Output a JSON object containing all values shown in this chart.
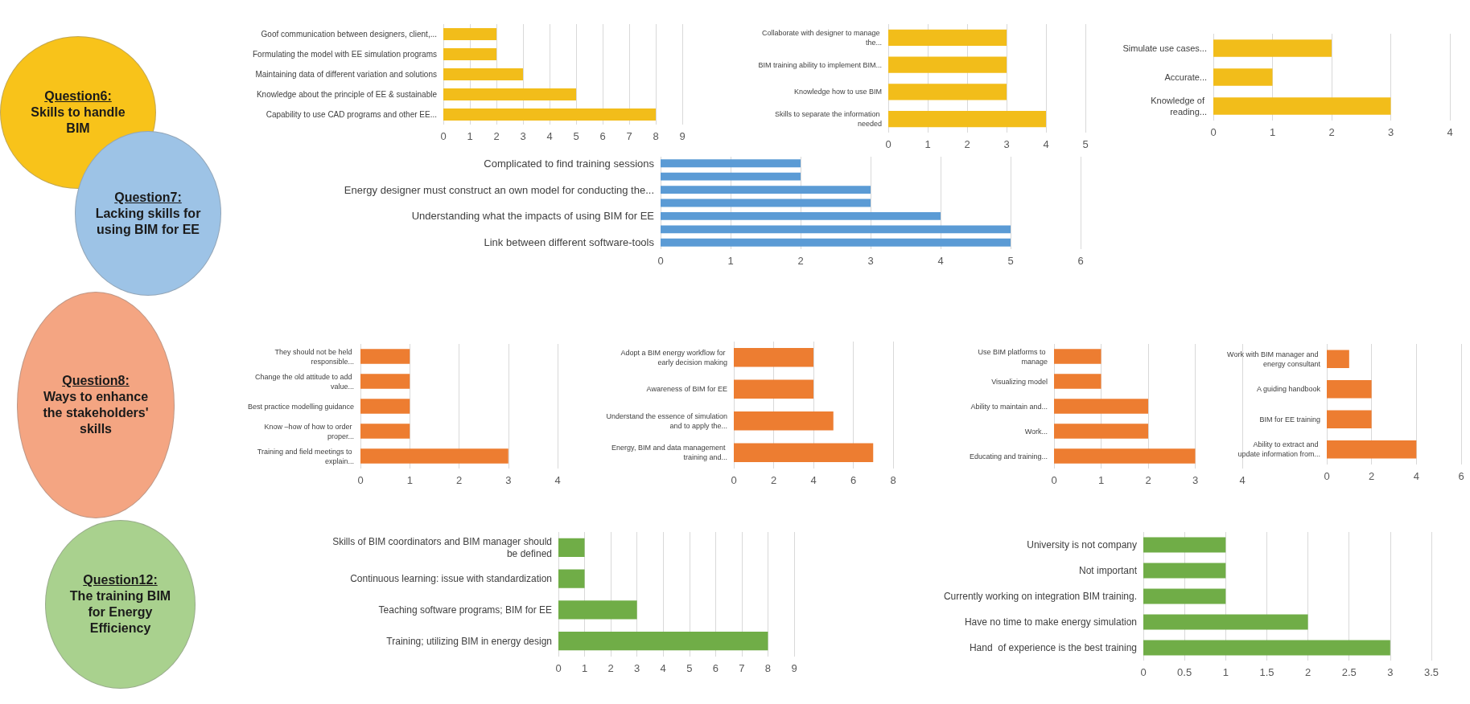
{
  "chart_data": [
    {
      "type": "other",
      "title": "Question6:",
      "subtitle": "Skills to handle BIM",
      "color": "#f8c31a"
    },
    {
      "type": "bar",
      "orientation": "horizontal",
      "categories": [
        "Goof communication between designers, client,...",
        "Formulating the model with EE simulation programs",
        "Maintaining data of different variation and solutions",
        "Knowledge about the principle of EE & sustainable",
        "Capability to use CAD programs and other EE..."
      ],
      "values": [
        2,
        2,
        3,
        5,
        8
      ],
      "color": "#f2bd1a",
      "xlim": [
        0,
        9
      ],
      "xticks": [
        0,
        1,
        2,
        3,
        4,
        5,
        6,
        7,
        8,
        9
      ],
      "grid": "x"
    },
    {
      "type": "bar",
      "orientation": "horizontal",
      "categories": [
        "Collaborate with designer to manage the...",
        "BIM training ability to implement BIM...",
        "Knowledge how to use BIM",
        "Skills to separate the information needed"
      ],
      "values": [
        3,
        3,
        3,
        4
      ],
      "color": "#f2bd1a",
      "xlim": [
        0,
        5
      ],
      "xticks": [
        0,
        1,
        2,
        3,
        4,
        5
      ],
      "grid": "x"
    },
    {
      "type": "bar",
      "orientation": "horizontal",
      "categories": [
        "Simulate use cases...",
        "Accurate...",
        "Knowledge of reading..."
      ],
      "values": [
        2,
        1,
        3
      ],
      "color": "#f2bd1a",
      "xlim": [
        0,
        4
      ],
      "xticks": [
        0,
        1,
        2,
        3,
        4
      ],
      "grid": "x"
    },
    {
      "type": "other",
      "title": "Question7:",
      "subtitle": "Lacking skills for using BIM for EE",
      "color": "#9dc3e6"
    },
    {
      "type": "bar",
      "orientation": "horizontal",
      "categories": [
        "Complicated to find training sessions",
        null,
        "Energy designer must construct an own model for conducting the...",
        null,
        "Understanding what the impacts of using BIM for EE",
        null,
        "Link between different software-tools"
      ],
      "values": [
        2,
        2,
        3,
        3,
        4,
        5,
        5
      ],
      "color": "#5b9bd5",
      "xlim": [
        0,
        6
      ],
      "xticks": [
        0,
        1,
        2,
        3,
        4,
        5,
        6
      ],
      "grid": "x"
    },
    {
      "type": "other",
      "title": "Question8:",
      "subtitle": "Ways to enhance the stakeholders' skills",
      "color": "#f4a582"
    },
    {
      "type": "bar",
      "orientation": "horizontal",
      "categories": [
        "They should not be held responsible...",
        "Change the old attitude to add value...",
        "Best practice modelling guidance",
        "Know –how of how to order proper...",
        "Training and field meetings to explain..."
      ],
      "values": [
        1,
        1,
        1,
        1,
        3
      ],
      "color": "#ed7d31",
      "xlim": [
        0,
        4
      ],
      "xticks": [
        0,
        1,
        2,
        3,
        4
      ],
      "grid": "x"
    },
    {
      "type": "bar",
      "orientation": "horizontal",
      "categories": [
        "Adopt a BIM energy workflow for early decision making",
        "Awareness of BIM for EE",
        "Understand the essence of simulation and to apply the...",
        "Energy, BIM and data management training and..."
      ],
      "values": [
        4,
        4,
        5,
        7
      ],
      "color": "#ed7d31",
      "xlim": [
        0,
        8
      ],
      "xticks": [
        0,
        2,
        4,
        6,
        8
      ],
      "grid": "x"
    },
    {
      "type": "bar",
      "orientation": "horizontal",
      "categories": [
        "Use BIM platforms to manage",
        "Visualizing model",
        "Ability to maintain and...",
        "Work...",
        "Educating and training..."
      ],
      "values": [
        1,
        1,
        2,
        2,
        3
      ],
      "color": "#ed7d31",
      "xlim": [
        0,
        4
      ],
      "xticks": [
        0,
        1,
        2,
        3,
        4
      ],
      "grid": "x"
    },
    {
      "type": "bar",
      "orientation": "horizontal",
      "categories": [
        "Work with BIM manager and energy consultant",
        "A guiding handbook",
        "BIM for EE training",
        "Ability to extract and update information from..."
      ],
      "values": [
        1,
        2,
        2,
        4
      ],
      "color": "#ed7d31",
      "xlim": [
        0,
        6
      ],
      "xticks": [
        0,
        2,
        4,
        6
      ],
      "grid": "x"
    },
    {
      "type": "other",
      "title": "Question12:",
      "subtitle": "The training BIM for Energy Efficiency",
      "color": "#a9d18e"
    },
    {
      "type": "bar",
      "orientation": "horizontal",
      "categories": [
        "Skills of BIM coordinators and BIM manager should be defined",
        "Continuous learning: issue with standardization",
        "Teaching software programs; BIM for EE",
        "Training; utilizing BIM in energy design"
      ],
      "values": [
        1,
        1,
        3,
        8
      ],
      "color": "#70ad47",
      "xlim": [
        0,
        9
      ],
      "xticks": [
        0,
        1,
        2,
        3,
        4,
        5,
        6,
        7,
        8,
        9
      ],
      "grid": "x"
    },
    {
      "type": "bar",
      "orientation": "horizontal",
      "categories": [
        "University is not company",
        "Not important",
        "Currently working on integration BIM training.",
        "Have no time to make energy simulation",
        "Hand  of experience is the best training"
      ],
      "values": [
        1,
        1,
        1,
        2,
        3
      ],
      "color": "#70ad47",
      "xlim": [
        0,
        3.5
      ],
      "xticks": [
        0,
        0.5,
        1,
        1.5,
        2,
        2.5,
        3,
        3.5
      ],
      "grid": "x"
    }
  ]
}
